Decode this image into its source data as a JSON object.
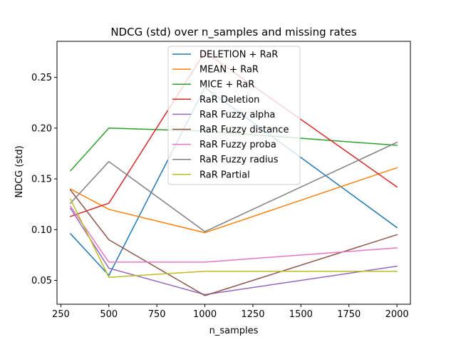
{
  "chart_data": {
    "type": "line",
    "title": "NDCG (std) over n_samples and missing rates",
    "xlabel": "n_samples",
    "ylabel": "NDCG (std)",
    "xlim": [
      230,
      2070
    ],
    "ylim": [
      0.0265,
      0.2855
    ],
    "xticks": [
      250,
      500,
      750,
      1000,
      1250,
      1500,
      1750,
      2000
    ],
    "yticks": [
      0.05,
      0.1,
      0.15,
      0.2,
      0.25
    ],
    "xtick_labels": [
      "250",
      "500",
      "750",
      "1000",
      "1250",
      "1500",
      "1750",
      "2000"
    ],
    "ytick_labels": [
      "0.05",
      "0.10",
      "0.15",
      "0.20",
      "0.25"
    ],
    "grid": false,
    "legend_position": "top-center",
    "x": [
      300,
      500,
      1000,
      2000
    ],
    "series": [
      {
        "name": "DELETION + RaR",
        "color": "#1f77b4",
        "values": [
          0.096,
          0.055,
          0.24,
          0.102
        ]
      },
      {
        "name": "MEAN + RaR",
        "color": "#ff7f0e",
        "values": [
          0.14,
          0.12,
          0.097,
          0.161
        ]
      },
      {
        "name": "MICE + RaR",
        "color": "#2ca02c",
        "values": [
          0.158,
          0.2,
          0.197,
          0.183
        ]
      },
      {
        "name": "RaR Deletion",
        "color": "#d62728",
        "values": [
          0.113,
          0.126,
          0.275,
          0.142
        ]
      },
      {
        "name": "RaR Fuzzy alpha",
        "color": "#9467bd",
        "values": [
          0.121,
          0.062,
          0.036,
          0.064
        ]
      },
      {
        "name": "RaR Fuzzy distance",
        "color": "#8c564b",
        "values": [
          0.139,
          0.09,
          0.035,
          0.095
        ]
      },
      {
        "name": "RaR Fuzzy proba",
        "color": "#e377c2",
        "values": [
          0.123,
          0.068,
          0.068,
          0.082
        ]
      },
      {
        "name": "RaR Fuzzy radius",
        "color": "#7f7f7f",
        "values": [
          0.126,
          0.167,
          0.098,
          0.186
        ]
      },
      {
        "name": "RaR Partial",
        "color": "#bcbd22",
        "values": [
          0.13,
          0.053,
          0.059,
          0.059
        ]
      }
    ]
  }
}
